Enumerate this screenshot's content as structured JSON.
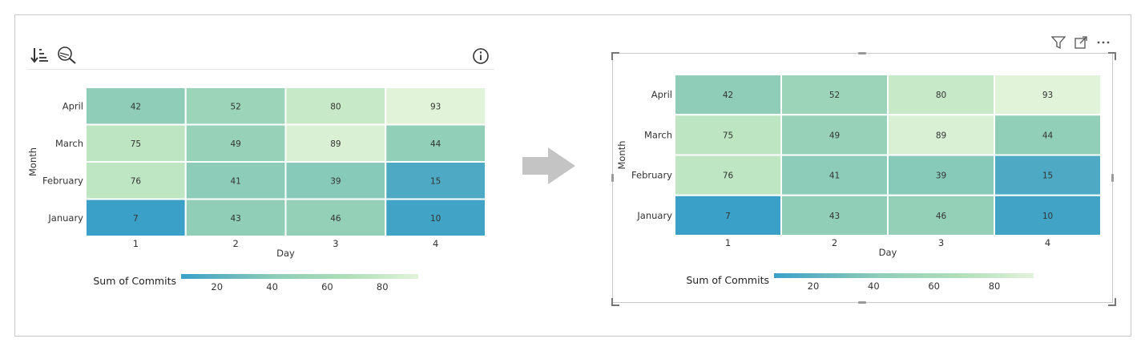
{
  "colors": {
    "scale_low": "#3aa0c8",
    "scale_high": "#e1f3d9",
    "cell_text": "#333333",
    "arrow": "#c4c4c4"
  },
  "left_toolbar": {
    "sort_icon": "sort-descending-icon",
    "focus_icon": "focus-mode-icon",
    "info_icon": "info-icon"
  },
  "right_toolbar": {
    "filter_icon": "filter-icon",
    "focus_icon": "expand-icon",
    "more_icon": "more-options-icon"
  },
  "arrow_icon": "right-arrow-icon",
  "chart_data": [
    {
      "type": "heatmap",
      "xlabel": "Day",
      "ylabel": "Month",
      "x": [
        "1",
        "2",
        "3",
        "4"
      ],
      "y": [
        "April",
        "March",
        "February",
        "January"
      ],
      "values": [
        [
          42,
          52,
          80,
          93
        ],
        [
          75,
          49,
          89,
          44
        ],
        [
          76,
          41,
          39,
          15
        ],
        [
          7,
          43,
          46,
          10
        ]
      ],
      "legend_title": "Sum of Commits",
      "legend_ticks": [
        "20",
        "40",
        "60",
        "80"
      ],
      "legend_ticks_values": [
        20,
        40,
        60,
        80
      ],
      "legend_range": [
        7,
        93
      ],
      "legend_placement": "bottom"
    },
    {
      "type": "heatmap",
      "xlabel": "Day",
      "ylabel": "Month",
      "x": [
        "1",
        "2",
        "3",
        "4"
      ],
      "y": [
        "April",
        "March",
        "February",
        "January"
      ],
      "values": [
        [
          42,
          52,
          80,
          93
        ],
        [
          75,
          49,
          89,
          44
        ],
        [
          76,
          41,
          39,
          15
        ],
        [
          7,
          43,
          46,
          10
        ]
      ],
      "legend_title": "Sum of Commits",
      "legend_ticks": [
        "20",
        "40",
        "60",
        "80"
      ],
      "legend_ticks_values": [
        20,
        40,
        60,
        80
      ],
      "legend_range": [
        7,
        93
      ],
      "legend_placement": "bottom"
    }
  ]
}
